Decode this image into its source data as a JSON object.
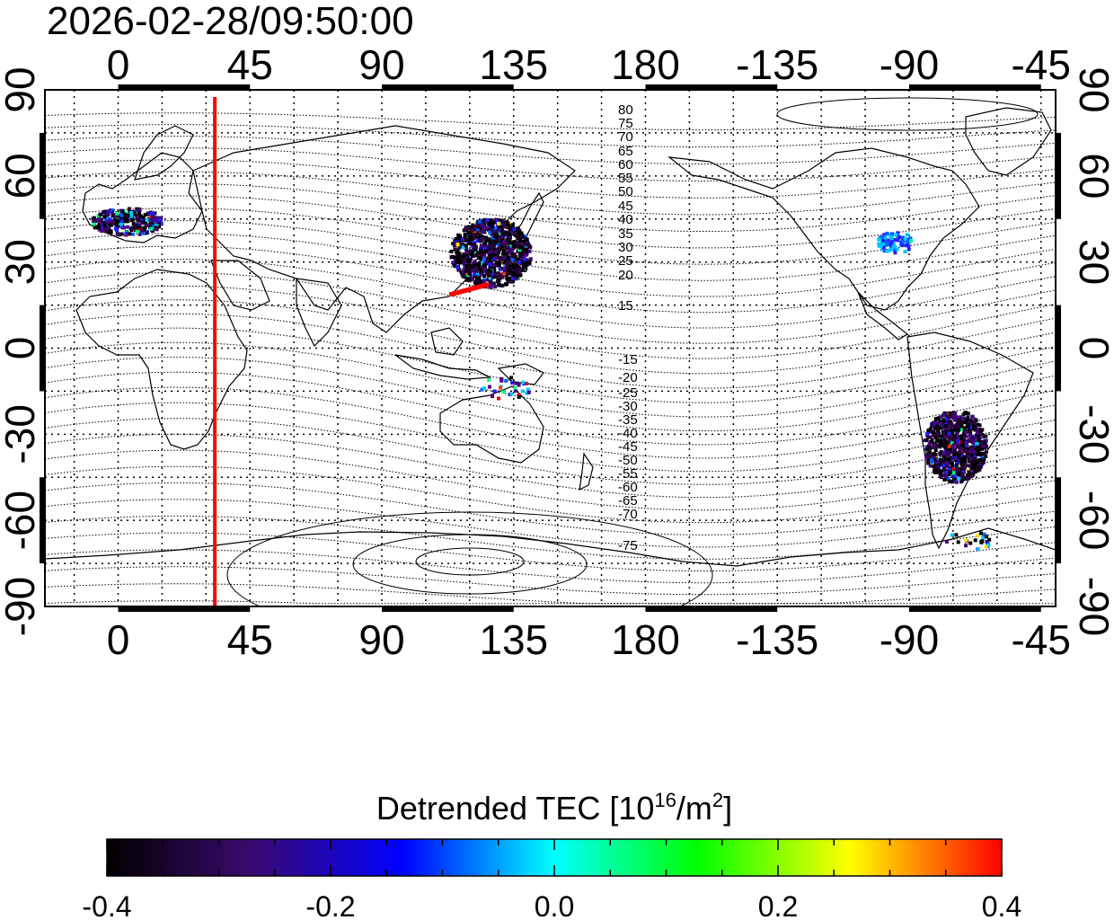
{
  "title": "2026-02-28/09:50:00",
  "map": {
    "x_ticks_top": [
      "0",
      "45",
      "90",
      "135",
      "180",
      "-135",
      "-90",
      "-45"
    ],
    "x_ticks_bottom": [
      "0",
      "45",
      "90",
      "135",
      "180",
      "-135",
      "-90",
      "-45"
    ],
    "y_ticks_left": [
      "90",
      "60",
      "30",
      "0",
      "-30",
      "-60",
      "-90"
    ],
    "y_ticks_right": [
      "90",
      "60",
      "30",
      "0",
      "-30",
      "-60",
      "-90"
    ],
    "lon_range": [
      -25,
      320
    ],
    "lat_range": [
      -90,
      90
    ],
    "terminator_longitude": 33,
    "terminator_color": "#ff0000",
    "contour_labels_north": [
      "80",
      "75",
      "70",
      "65",
      "60",
      "55",
      "50",
      "45",
      "40",
      "35",
      "30",
      "25",
      "20",
      "15"
    ],
    "contour_labels_south": [
      "-15",
      "-20",
      "-25",
      "-30",
      "-35",
      "-40",
      "-45",
      "-50",
      "-55",
      "-60",
      "-65",
      "-70",
      "-75"
    ]
  },
  "colorbar": {
    "title_main": "Detrended TEC  [10",
    "title_sup1": "16",
    "title_mid": "/m",
    "title_sup2": "2",
    "title_end": "]",
    "tick_labels": [
      "-0.4",
      "-0.2",
      "0.0",
      "0.2",
      "0.4"
    ],
    "min": -0.4,
    "max": 0.4,
    "colors": [
      "#000000",
      "#3a0a6e",
      "#0000ff",
      "#00ffff",
      "#00ff00",
      "#ffff00",
      "#ff0000"
    ]
  }
}
